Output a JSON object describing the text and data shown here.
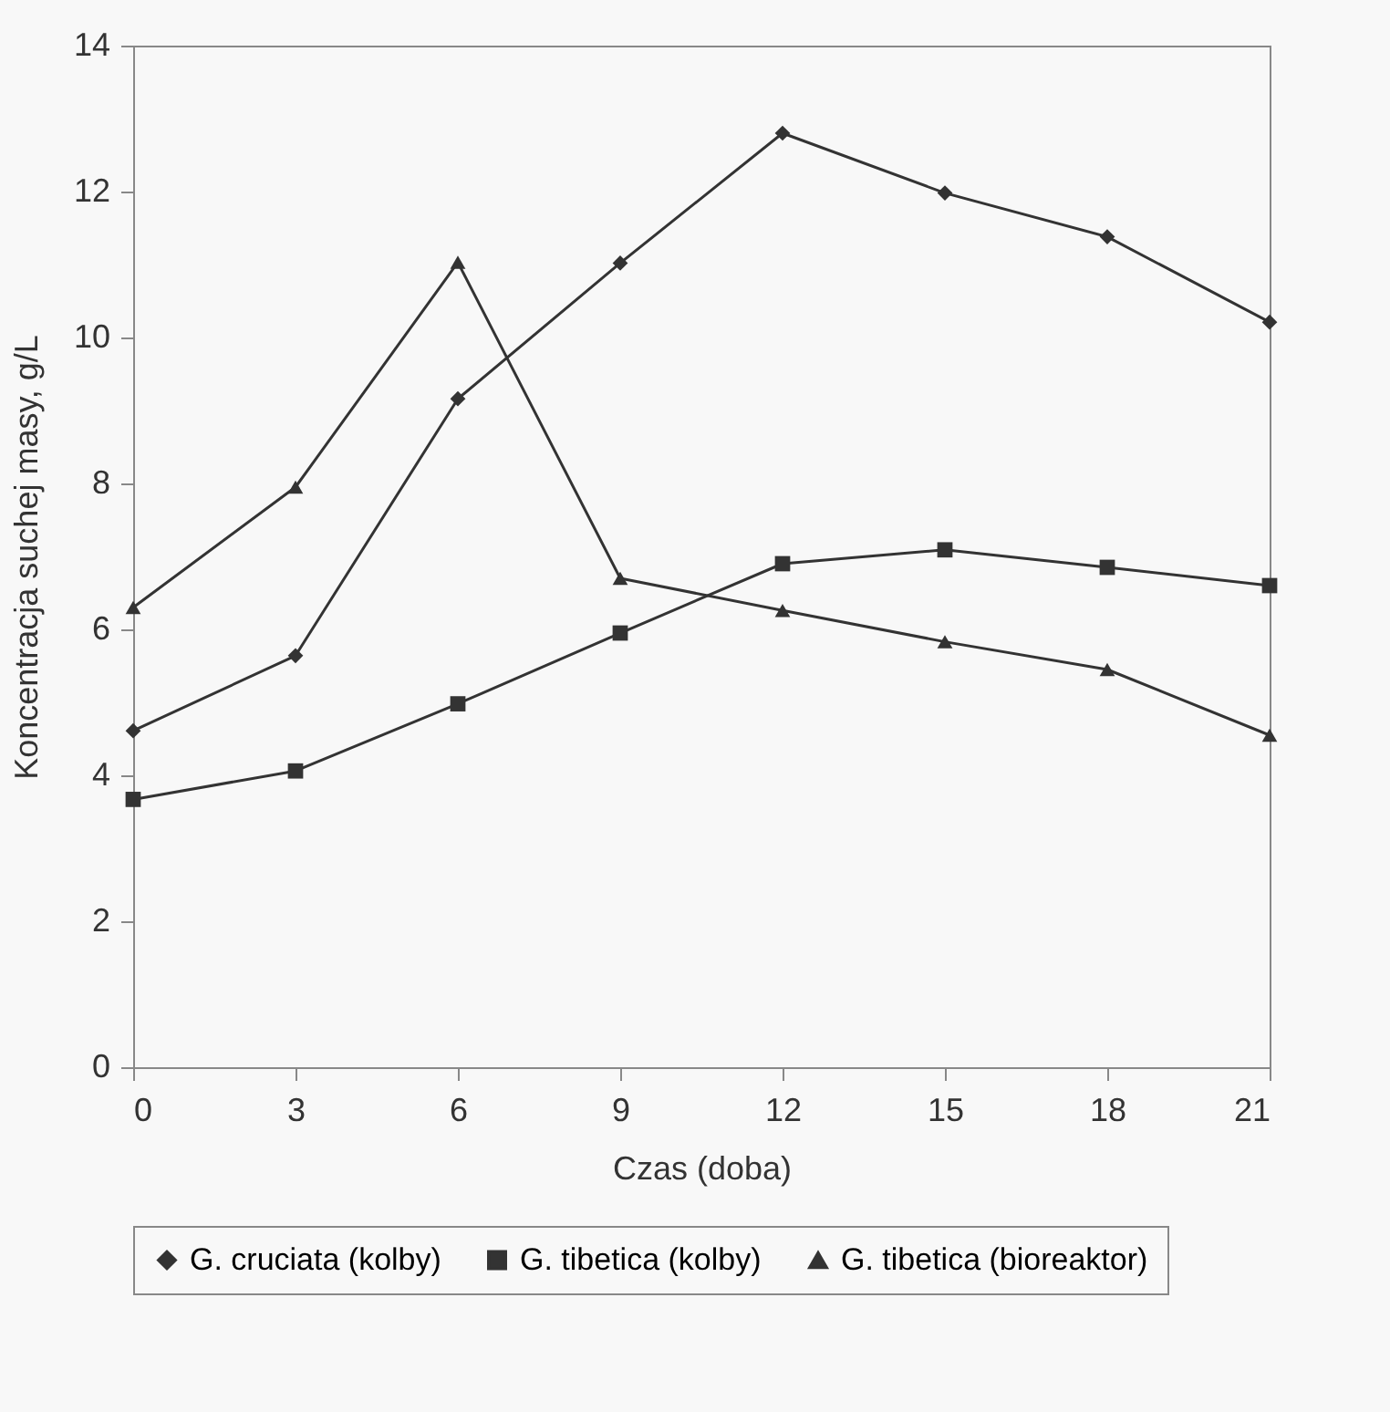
{
  "chart_data": {
    "type": "line",
    "xlabel": "Czas (doba)",
    "ylabel": "Koncentracja suchej masy, g/L",
    "x": [
      0,
      3,
      6,
      9,
      12,
      15,
      18,
      21
    ],
    "xlim": [
      0,
      21
    ],
    "xticks": [
      0,
      3,
      6,
      9,
      12,
      15,
      18,
      21
    ],
    "ylim": [
      0,
      14
    ],
    "yticks": [
      0,
      2,
      4,
      6,
      8,
      10,
      12,
      14
    ],
    "grid": false,
    "legend": "bottom",
    "series": [
      {
        "name": "G. cruciata (kolby)",
        "color": "#333333",
        "marker": "diamond",
        "values": [
          4.61,
          5.64,
          9.16,
          11.02,
          12.8,
          11.98,
          11.38,
          10.21
        ]
      },
      {
        "name": "G. tibetica (kolby)",
        "color": "#333333",
        "marker": "square",
        "values": [
          3.67,
          4.06,
          4.98,
          5.95,
          6.9,
          7.09,
          6.85,
          6.6
        ]
      },
      {
        "name": "G. tibetica (bioreaktor)",
        "color": "#333333",
        "marker": "triangle",
        "values": [
          6.3,
          7.95,
          11.03,
          6.7,
          6.26,
          5.83,
          5.45,
          4.55
        ]
      }
    ]
  }
}
